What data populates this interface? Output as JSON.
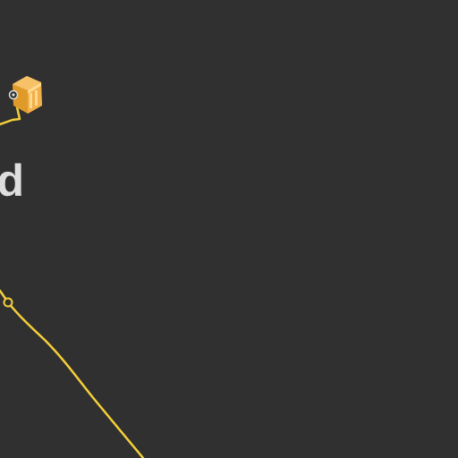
{
  "map": {
    "background_color": "#303030",
    "road_color": "#f4cf3a",
    "label_color": "#dedede",
    "place_label": "nd",
    "icons": [
      "poi-building-icon",
      "road-junction-icon"
    ]
  }
}
